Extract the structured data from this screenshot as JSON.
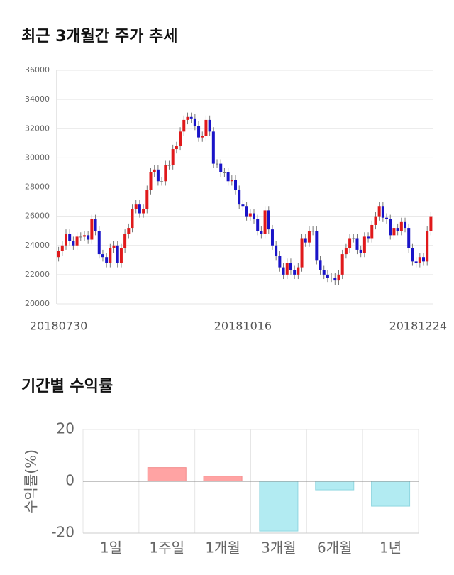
{
  "chart_data": [
    {
      "type": "candlestick",
      "title": "최근 3개월간 주가 추세",
      "categories": [
        "20180730",
        null,
        null,
        null,
        null,
        null,
        null,
        null,
        null,
        null,
        null,
        null,
        null,
        null,
        null,
        null,
        null,
        null,
        null,
        null,
        null,
        null,
        null,
        null,
        null,
        null,
        null,
        null,
        null,
        null,
        null,
        null,
        null,
        null,
        null,
        null,
        null,
        null,
        null,
        null,
        null,
        null,
        null,
        null,
        null,
        null,
        null,
        null,
        null,
        null,
        "20181016",
        null,
        null,
        null,
        null,
        null,
        null,
        null,
        null,
        null,
        null,
        null,
        null,
        null,
        null,
        null,
        null,
        null,
        null,
        null,
        null,
        null,
        null,
        null,
        null,
        null,
        null,
        null,
        null,
        null,
        null,
        null,
        null,
        null,
        null,
        null,
        null,
        null,
        null,
        null,
        null,
        null,
        null,
        null,
        null,
        null,
        null,
        null,
        null,
        null,
        null,
        "20181224"
      ],
      "open": [
        23200,
        23600,
        24000,
        24800,
        24300,
        24000,
        24600,
        24600,
        24700,
        24400,
        25800,
        25000,
        23400,
        23200,
        22800,
        23800,
        24000,
        22800,
        23800,
        24800,
        25200,
        26500,
        26800,
        26200,
        26500,
        27800,
        29000,
        29200,
        28400,
        28400,
        29500,
        29500,
        30600,
        30800,
        31800,
        32600,
        32800,
        32700,
        32200,
        31400,
        31500,
        32600,
        31800,
        29600,
        29600,
        29000,
        29000,
        28400,
        28500,
        27800,
        26800,
        26700,
        26000,
        26200,
        25800,
        25000,
        24800,
        26400,
        25100,
        24000,
        23300,
        22500,
        22000,
        22800,
        22300,
        22000,
        22500,
        24500,
        24200,
        25000,
        25000,
        23000,
        22300,
        22000,
        21800,
        21800,
        21600,
        22000,
        23400,
        23800,
        24500,
        24500,
        23700,
        23500,
        24600,
        24500,
        25400,
        26000,
        26700,
        25900,
        25800,
        24700,
        25200,
        25000,
        25600,
        25200,
        23800,
        22900,
        22800,
        23200,
        22900,
        25000
      ],
      "high": [
        23900,
        24300,
        25100,
        25100,
        24600,
        24900,
        24900,
        25000,
        25000,
        26100,
        26100,
        25300,
        23700,
        23500,
        24100,
        24300,
        24300,
        24100,
        25100,
        25500,
        26800,
        27100,
        27100,
        26800,
        28100,
        29300,
        29500,
        29500,
        28700,
        29800,
        29800,
        30900,
        31100,
        32100,
        32900,
        33100,
        33100,
        33000,
        32500,
        31800,
        32900,
        32900,
        32100,
        29900,
        29900,
        29300,
        29300,
        28800,
        28800,
        28100,
        27100,
        27000,
        26500,
        26500,
        26100,
        25300,
        26700,
        26700,
        25400,
        24300,
        23600,
        22800,
        23100,
        23100,
        22600,
        22800,
        24800,
        24800,
        25300,
        25300,
        25300,
        23300,
        22600,
        22300,
        22100,
        22100,
        22300,
        23700,
        24100,
        24800,
        24800,
        24800,
        24000,
        24900,
        24900,
        25700,
        26300,
        27000,
        27000,
        26200,
        26100,
        25500,
        25500,
        25900,
        25900,
        25500,
        24100,
        23200,
        23500,
        23500,
        25300,
        26300
      ],
      "low": [
        22900,
        23300,
        23700,
        24000,
        23700,
        23700,
        24300,
        24300,
        24100,
        24100,
        24700,
        23100,
        22900,
        22500,
        22500,
        23500,
        22500,
        22500,
        23500,
        24500,
        24900,
        26200,
        25900,
        25900,
        26200,
        27500,
        28700,
        28100,
        28100,
        28100,
        29200,
        29200,
        30300,
        30500,
        31500,
        32300,
        32400,
        31900,
        31100,
        31100,
        31200,
        31500,
        29300,
        29300,
        28700,
        28700,
        28100,
        28100,
        27500,
        26500,
        26400,
        25700,
        25700,
        25500,
        24700,
        24500,
        24500,
        24800,
        23700,
        23000,
        22200,
        21700,
        21700,
        22000,
        21700,
        21700,
        22200,
        23900,
        23900,
        24700,
        22700,
        22000,
        21700,
        21500,
        21500,
        21300,
        21300,
        21700,
        23100,
        23500,
        24200,
        23400,
        23200,
        23200,
        24200,
        24200,
        25100,
        25700,
        25600,
        25500,
        24400,
        24400,
        24700,
        24700,
        24900,
        23500,
        22600,
        22500,
        22500,
        22600,
        22600,
        24700
      ],
      "close": [
        23600,
        24000,
        24800,
        24300,
        24000,
        24600,
        24600,
        24700,
        24400,
        25800,
        25000,
        23400,
        23200,
        22800,
        23800,
        24000,
        22800,
        23800,
        24800,
        25200,
        26500,
        26800,
        26200,
        26500,
        27800,
        29000,
        29200,
        28400,
        28400,
        29500,
        29500,
        30600,
        30800,
        31800,
        32600,
        32800,
        32700,
        32200,
        31400,
        31500,
        32600,
        31800,
        29600,
        29600,
        29000,
        29000,
        28400,
        28500,
        27800,
        26800,
        26700,
        26000,
        26200,
        25800,
        25000,
        24800,
        26400,
        25100,
        24000,
        23300,
        22500,
        22000,
        22800,
        22300,
        22000,
        22500,
        24500,
        24200,
        25000,
        25000,
        23000,
        22300,
        22000,
        21800,
        21800,
        21600,
        22000,
        23400,
        23800,
        24500,
        24500,
        23700,
        23500,
        24600,
        24500,
        25400,
        26000,
        26700,
        25900,
        25800,
        24700,
        25200,
        25000,
        25600,
        25200,
        23800,
        22900,
        22800,
        23200,
        22900,
        25000,
        26000
      ],
      "up_color": "#e0191b",
      "down_color": "#1a14c8",
      "wick_color": "#777777",
      "ylim": [
        20000,
        36000
      ],
      "yticks": [
        20000,
        22000,
        24000,
        26000,
        28000,
        30000,
        32000,
        34000,
        36000
      ],
      "grid": true
    },
    {
      "type": "bar",
      "title": "기간별 수익률",
      "ylabel": "수익률(%)",
      "categories": [
        "1일",
        "1주일",
        "1개월",
        "3개월",
        "6개월",
        "1년"
      ],
      "values": [
        0,
        5.3,
        2.0,
        -19.2,
        -3.3,
        -9.6
      ],
      "positive_color": "#ffa3a3",
      "negative_color": "#b2ebf2",
      "ylim": [
        -20,
        20
      ],
      "yticks": [
        -20,
        0,
        20
      ],
      "grid": true
    }
  ]
}
